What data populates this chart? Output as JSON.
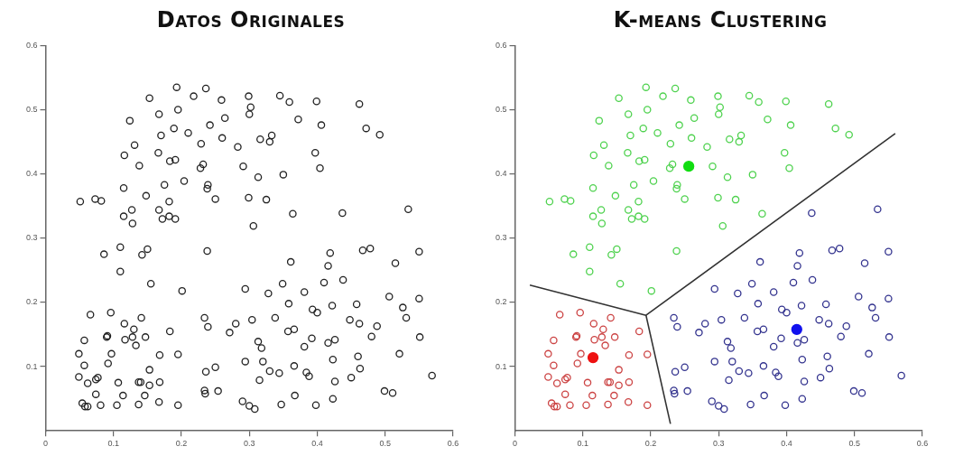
{
  "chart_data": [
    {
      "type": "scatter",
      "title": "Datos Originales",
      "marker": "circle",
      "xlim": [
        0,
        0.6
      ],
      "ylim": [
        0,
        0.6
      ],
      "xticks": [
        0,
        0.1,
        0.2,
        0.3,
        0.4,
        0.5,
        0.6
      ],
      "yticks": [
        0.1,
        0.2,
        0.3,
        0.4,
        0.5,
        0.6
      ],
      "grid": false,
      "legend": false,
      "series": [
        {
          "color": "#222222",
          "x": [
            0.051,
            0.073,
            0.082,
            0.115,
            0.115,
            0.127,
            0.128,
            0.116,
            0.131,
            0.138,
            0.124,
            0.153,
            0.167,
            0.17,
            0.166,
            0.148,
            0.167,
            0.172,
            0.182,
            0.191,
            0.182,
            0.175,
            0.183,
            0.191,
            0.189,
            0.195,
            0.193,
            0.218,
            0.236,
            0.21,
            0.204,
            0.229,
            0.242,
            0.228,
            0.232,
            0.239,
            0.238,
            0.25,
            0.26,
            0.259,
            0.264,
            0.283,
            0.291,
            0.299,
            0.302,
            0.3,
            0.313,
            0.299,
            0.325,
            0.306,
            0.316,
            0.33,
            0.333,
            0.345,
            0.359,
            0.372,
            0.35,
            0.364,
            0.397,
            0.399,
            0.406,
            0.404,
            0.462,
            0.472,
            0.492,
            0.086,
            0.11,
            0.11,
            0.142,
            0.15,
            0.155,
            0.201,
            0.238,
            0.066,
            0.096,
            0.116,
            0.141,
            0.13,
            0.128,
            0.147,
            0.117,
            0.133,
            0.09,
            0.091,
            0.183,
            0.057,
            0.049,
            0.097,
            0.168,
            0.195,
            0.057,
            0.092,
            0.153,
            0.049,
            0.062,
            0.074,
            0.077,
            0.107,
            0.137,
            0.14,
            0.153,
            0.168,
            0.074,
            0.114,
            0.146,
            0.054,
            0.058,
            0.062,
            0.081,
            0.105,
            0.137,
            0.167,
            0.195,
            0.419,
            0.467,
            0.478,
            0.55,
            0.361,
            0.416,
            0.515,
            0.438,
            0.41,
            0.349,
            0.381,
            0.294,
            0.328,
            0.358,
            0.422,
            0.458,
            0.506,
            0.55,
            0.526,
            0.531,
            0.393,
            0.4,
            0.234,
            0.239,
            0.28,
            0.271,
            0.304,
            0.338,
            0.357,
            0.366,
            0.448,
            0.462,
            0.488,
            0.48,
            0.551,
            0.313,
            0.318,
            0.381,
            0.392,
            0.416,
            0.426,
            0.521,
            0.46,
            0.423,
            0.294,
            0.32,
            0.366,
            0.236,
            0.25,
            0.33,
            0.344,
            0.384,
            0.388,
            0.463,
            0.45,
            0.315,
            0.426,
            0.569,
            0.234,
            0.235,
            0.254,
            0.499,
            0.511,
            0.29,
            0.3,
            0.308,
            0.347,
            0.367,
            0.398,
            0.423,
            0.437,
            0.534
          ],
          "values": [
            0.357,
            0.361,
            0.358,
            0.378,
            0.334,
            0.344,
            0.323,
            0.429,
            0.445,
            0.413,
            0.483,
            0.518,
            0.493,
            0.46,
            0.433,
            0.366,
            0.344,
            0.33,
            0.334,
            0.33,
            0.357,
            0.383,
            0.42,
            0.422,
            0.471,
            0.5,
            0.535,
            0.521,
            0.533,
            0.464,
            0.389,
            0.447,
            0.476,
            0.409,
            0.415,
            0.383,
            0.377,
            0.361,
            0.456,
            0.515,
            0.487,
            0.442,
            0.412,
            0.521,
            0.504,
            0.493,
            0.395,
            0.363,
            0.36,
            0.319,
            0.454,
            0.45,
            0.46,
            0.522,
            0.512,
            0.485,
            0.399,
            0.338,
            0.433,
            0.513,
            0.476,
            0.409,
            0.509,
            0.471,
            0.461,
            0.275,
            0.286,
            0.248,
            0.274,
            0.283,
            0.229,
            0.218,
            0.28,
            0.181,
            0.184,
            0.167,
            0.176,
            0.158,
            0.146,
            0.146,
            0.142,
            0.133,
            0.146,
            0.148,
            0.155,
            0.141,
            0.12,
            0.12,
            0.118,
            0.119,
            0.102,
            0.105,
            0.095,
            0.084,
            0.074,
            0.08,
            0.083,
            0.075,
            0.076,
            0.076,
            0.071,
            0.076,
            0.057,
            0.055,
            0.055,
            0.043,
            0.038,
            0.038,
            0.04,
            0.04,
            0.041,
            0.045,
            0.04,
            0.277,
            0.281,
            0.284,
            0.279,
            0.263,
            0.257,
            0.261,
            0.235,
            0.231,
            0.229,
            0.216,
            0.221,
            0.214,
            0.198,
            0.195,
            0.197,
            0.209,
            0.206,
            0.192,
            0.176,
            0.189,
            0.184,
            0.176,
            0.162,
            0.167,
            0.153,
            0.173,
            0.176,
            0.155,
            0.158,
            0.173,
            0.167,
            0.163,
            0.147,
            0.146,
            0.139,
            0.129,
            0.131,
            0.144,
            0.137,
            0.142,
            0.12,
            0.116,
            0.111,
            0.108,
            0.108,
            0.101,
            0.092,
            0.099,
            0.093,
            0.09,
            0.091,
            0.085,
            0.097,
            0.083,
            0.079,
            0.077,
            0.086,
            0.063,
            0.058,
            0.062,
            0.062,
            0.059,
            0.046,
            0.039,
            0.034,
            0.041,
            0.055,
            0.04,
            0.05,
            0.339,
            0.345
          ]
        }
      ]
    },
    {
      "type": "scatter",
      "title": "K-means Clustering",
      "marker": "circle",
      "xlim": [
        0,
        0.6
      ],
      "ylim": [
        0,
        0.6
      ],
      "xticks": [
        0,
        0.1,
        0.2,
        0.3,
        0.4,
        0.5,
        0.6
      ],
      "yticks": [
        0.1,
        0.2,
        0.3,
        0.4,
        0.5,
        0.6
      ],
      "grid": false,
      "legend": false,
      "series": [
        {
          "color": "#4fd24f",
          "x": [
            0.051,
            0.073,
            0.082,
            0.115,
            0.115,
            0.127,
            0.128,
            0.116,
            0.131,
            0.138,
            0.124,
            0.153,
            0.167,
            0.17,
            0.166,
            0.148,
            0.167,
            0.172,
            0.182,
            0.191,
            0.182,
            0.175,
            0.183,
            0.191,
            0.189,
            0.195,
            0.193,
            0.218,
            0.236,
            0.21,
            0.204,
            0.229,
            0.242,
            0.228,
            0.232,
            0.239,
            0.238,
            0.25,
            0.26,
            0.259,
            0.264,
            0.283,
            0.291,
            0.299,
            0.302,
            0.3,
            0.313,
            0.299,
            0.325,
            0.306,
            0.316,
            0.33,
            0.333,
            0.345,
            0.359,
            0.372,
            0.35,
            0.364,
            0.397,
            0.399,
            0.406,
            0.404,
            0.462,
            0.472,
            0.492,
            0.086,
            0.11,
            0.11,
            0.142,
            0.15,
            0.155,
            0.201,
            0.238
          ],
          "values": [
            0.357,
            0.361,
            0.358,
            0.378,
            0.334,
            0.344,
            0.323,
            0.429,
            0.445,
            0.413,
            0.483,
            0.518,
            0.493,
            0.46,
            0.433,
            0.366,
            0.344,
            0.33,
            0.334,
            0.33,
            0.357,
            0.383,
            0.42,
            0.422,
            0.471,
            0.5,
            0.535,
            0.521,
            0.533,
            0.464,
            0.389,
            0.447,
            0.476,
            0.409,
            0.415,
            0.383,
            0.377,
            0.361,
            0.456,
            0.515,
            0.487,
            0.442,
            0.412,
            0.521,
            0.504,
            0.493,
            0.395,
            0.363,
            0.36,
            0.319,
            0.454,
            0.45,
            0.46,
            0.522,
            0.512,
            0.485,
            0.399,
            0.338,
            0.433,
            0.513,
            0.476,
            0.409,
            0.509,
            0.471,
            0.461,
            0.275,
            0.286,
            0.248,
            0.274,
            0.283,
            0.229,
            0.218,
            0.28
          ]
        },
        {
          "color": "#cc4444",
          "x": [
            0.066,
            0.096,
            0.116,
            0.141,
            0.13,
            0.128,
            0.147,
            0.117,
            0.133,
            0.09,
            0.091,
            0.183,
            0.057,
            0.049,
            0.097,
            0.168,
            0.195,
            0.057,
            0.092,
            0.153,
            0.049,
            0.062,
            0.074,
            0.077,
            0.107,
            0.137,
            0.14,
            0.153,
            0.168,
            0.074,
            0.114,
            0.146,
            0.054,
            0.058,
            0.062,
            0.081,
            0.105,
            0.137,
            0.167,
            0.195
          ],
          "values": [
            0.181,
            0.184,
            0.167,
            0.176,
            0.158,
            0.146,
            0.146,
            0.142,
            0.133,
            0.146,
            0.148,
            0.155,
            0.141,
            0.12,
            0.12,
            0.118,
            0.119,
            0.102,
            0.105,
            0.095,
            0.084,
            0.074,
            0.08,
            0.083,
            0.075,
            0.076,
            0.076,
            0.071,
            0.076,
            0.057,
            0.055,
            0.055,
            0.043,
            0.038,
            0.038,
            0.04,
            0.04,
            0.041,
            0.045,
            0.04
          ]
        },
        {
          "color": "#34348f",
          "x": [
            0.419,
            0.467,
            0.478,
            0.55,
            0.361,
            0.416,
            0.515,
            0.438,
            0.41,
            0.349,
            0.381,
            0.294,
            0.328,
            0.358,
            0.422,
            0.458,
            0.506,
            0.55,
            0.526,
            0.531,
            0.393,
            0.4,
            0.234,
            0.239,
            0.28,
            0.271,
            0.304,
            0.338,
            0.357,
            0.366,
            0.448,
            0.462,
            0.488,
            0.48,
            0.551,
            0.313,
            0.318,
            0.381,
            0.392,
            0.416,
            0.426,
            0.521,
            0.46,
            0.423,
            0.294,
            0.32,
            0.366,
            0.236,
            0.25,
            0.33,
            0.344,
            0.384,
            0.388,
            0.463,
            0.45,
            0.315,
            0.426,
            0.569,
            0.234,
            0.235,
            0.254,
            0.499,
            0.511,
            0.29,
            0.3,
            0.308,
            0.347,
            0.367,
            0.398,
            0.423,
            0.437,
            0.534
          ],
          "values": [
            0.277,
            0.281,
            0.284,
            0.279,
            0.263,
            0.257,
            0.261,
            0.235,
            0.231,
            0.229,
            0.216,
            0.221,
            0.214,
            0.198,
            0.195,
            0.197,
            0.209,
            0.206,
            0.192,
            0.176,
            0.189,
            0.184,
            0.176,
            0.162,
            0.167,
            0.153,
            0.173,
            0.176,
            0.155,
            0.158,
            0.173,
            0.167,
            0.163,
            0.147,
            0.146,
            0.139,
            0.129,
            0.131,
            0.144,
            0.137,
            0.142,
            0.12,
            0.116,
            0.111,
            0.108,
            0.108,
            0.101,
            0.092,
            0.099,
            0.093,
            0.09,
            0.091,
            0.085,
            0.097,
            0.083,
            0.079,
            0.077,
            0.086,
            0.063,
            0.058,
            0.062,
            0.062,
            0.059,
            0.046,
            0.039,
            0.034,
            0.041,
            0.055,
            0.04,
            0.05,
            0.339,
            0.345
          ]
        },
        {
          "colors": [
            "#ee1111",
            "#11dd11",
            "#1111ee"
          ],
          "x": [
            0.115,
            0.256,
            0.415
          ],
          "values": [
            0.114,
            0.412,
            0.158
          ]
        },
        {
          "type": "line",
          "color": "#333333",
          "marker": "none",
          "line_style": "solid",
          "x": [
            0.022,
            0.193,
            0.56
          ],
          "values": [
            0.227,
            0.18,
            0.463
          ]
        },
        {
          "type": "line",
          "color": "#333333",
          "marker": "none",
          "line_style": "solid",
          "x": [
            0.193,
            0.229
          ],
          "values": [
            0.18,
            0.011
          ]
        }
      ]
    }
  ]
}
